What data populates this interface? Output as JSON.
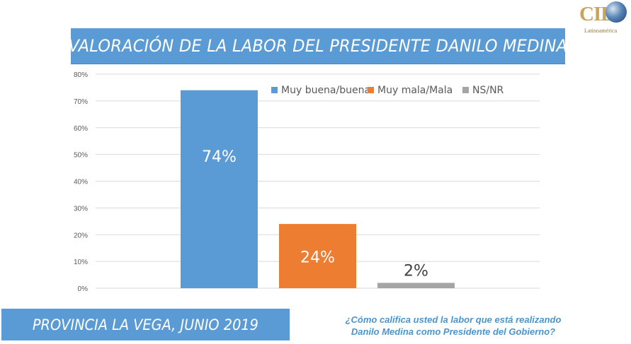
{
  "logo": {
    "brand": "CID",
    "subtitle": "Latinoamérica"
  },
  "title": "VALORACIÓN DE LA LABOR DEL PRESIDENTE DANILO MEDINA",
  "footer": {
    "location_date": "PROVINCIA LA VEGA, JUNIO 2019",
    "question_line1": "¿Cómo califica usted la labor que está realizando",
    "question_line2": "Danilo Medina como Presidente del Gobierno?"
  },
  "colors": {
    "banner": "#5b9bd5",
    "positive": "#5b9bd5",
    "negative": "#ed7d31",
    "nsnr": "#a5a5a5",
    "question": "#4b94cc"
  },
  "chart_data": {
    "type": "bar",
    "title": "VALORACIÓN DE LA LABOR DEL PRESIDENTE DANILO MEDINA",
    "xlabel": "",
    "ylabel": "",
    "ylim": [
      0,
      80
    ],
    "yticks": [
      0,
      10,
      20,
      30,
      40,
      50,
      60,
      70,
      80
    ],
    "ytick_labels": [
      "0%",
      "10%",
      "20%",
      "30%",
      "40%",
      "50%",
      "60%",
      "70%",
      "80%"
    ],
    "grid": true,
    "legend_position": "top-right",
    "categories": [
      "Muy buena/buena",
      "Muy mala/Mala",
      "NS/NR"
    ],
    "series": [
      {
        "name": "Muy buena/buena",
        "value": 74,
        "label": "74%",
        "color": "#5b9bd5"
      },
      {
        "name": "Muy mala/Mala",
        "value": 24,
        "label": "24%",
        "color": "#ed7d31"
      },
      {
        "name": "NS/NR",
        "value": 2,
        "label": "2%",
        "color": "#a5a5a5"
      }
    ]
  }
}
